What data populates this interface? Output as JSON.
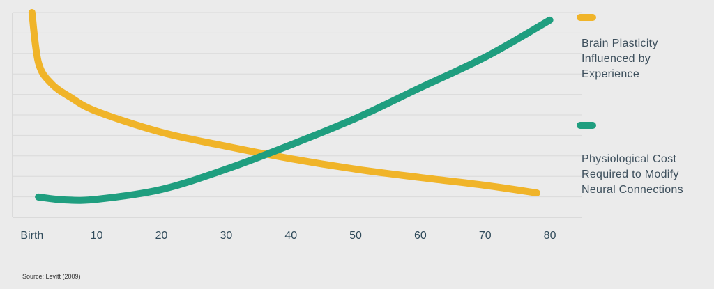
{
  "chart_data": {
    "type": "line",
    "series": [
      {
        "name": "Brain Plasticity Influenced by Experience",
        "color": "#f0b429",
        "x": [
          0,
          1,
          3,
          6,
          10,
          20,
          30,
          40,
          50,
          60,
          70,
          78
        ],
        "values": [
          10,
          7.55,
          6.53,
          5.85,
          5.17,
          4.15,
          3.47,
          2.86,
          2.35,
          1.94,
          1.56,
          1.19
        ]
      },
      {
        "name": "Physiological Cost Required to Modify Neural Connections",
        "color": "#1f9e7f",
        "x": [
          1,
          5,
          10,
          20,
          30,
          40,
          50,
          60,
          70,
          80
        ],
        "values": [
          0.99,
          0.85,
          0.88,
          1.36,
          2.35,
          3.54,
          4.83,
          6.33,
          7.82,
          9.63
        ]
      }
    ],
    "xlim": [
      -3,
      85
    ],
    "xticks": [
      {
        "value": 0,
        "label": "Birth"
      },
      10,
      20,
      30,
      40,
      50,
      60,
      70,
      80
    ],
    "ylim": [
      0,
      10
    ],
    "yticks": [
      0,
      1,
      2,
      3,
      4,
      5,
      6,
      7,
      8,
      9,
      10
    ],
    "show_ytick_labels": false,
    "grid": true,
    "source": "Source: Levitt (2009)"
  }
}
